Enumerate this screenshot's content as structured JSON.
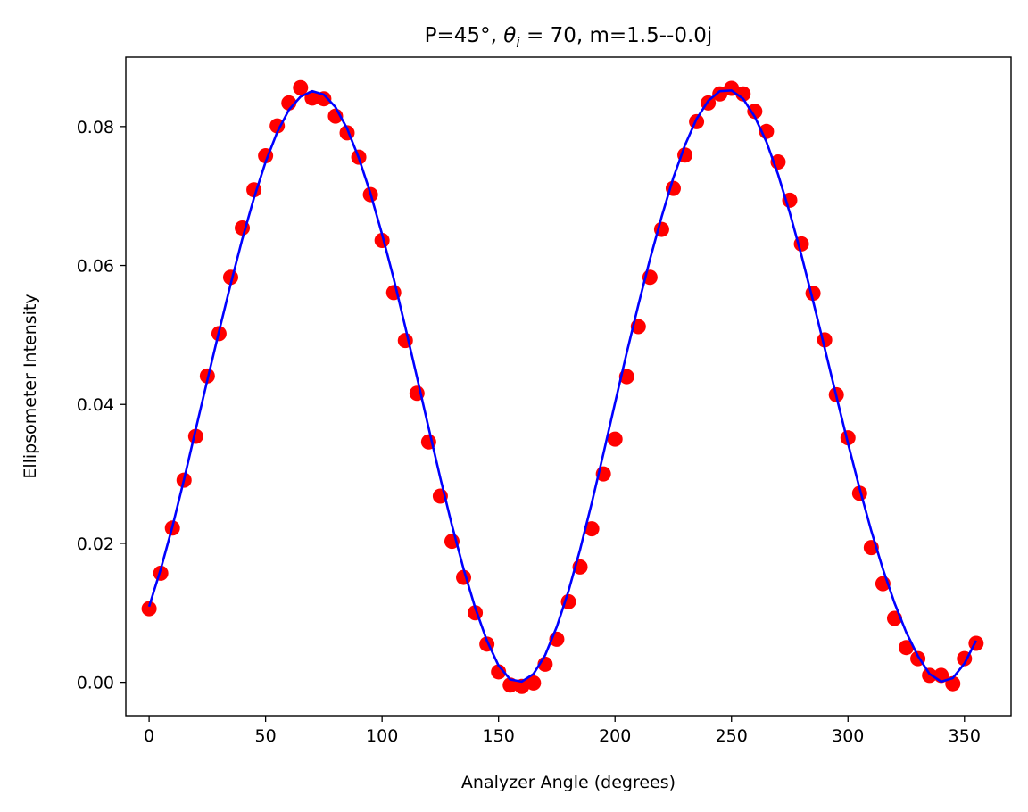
{
  "chart_data": {
    "type": "scatter",
    "title_prefix": "P=45°, ",
    "title_theta": "θ",
    "title_sub": "i",
    "title_suffix": " = 70, m=1.5--0.0j",
    "xlabel": "Analyzer Angle (degrees)",
    "ylabel": "Ellipsometer Intensity",
    "xlim": [
      -10,
      370
    ],
    "ylim": [
      -0.0048,
      0.09
    ],
    "xticks": [
      0,
      50,
      100,
      150,
      200,
      250,
      300,
      350
    ],
    "xtick_labels": [
      "0",
      "50",
      "100",
      "150",
      "200",
      "250",
      "300",
      "350"
    ],
    "yticks": [
      0.0,
      0.02,
      0.04,
      0.06,
      0.08
    ],
    "ytick_labels": [
      "0.00",
      "0.02",
      "0.04",
      "0.06",
      "0.08"
    ],
    "grid": false,
    "legend": "none",
    "series": [
      {
        "kind": "scatter",
        "color": "#ff0000",
        "x": [
          0,
          5,
          10,
          15,
          20,
          25,
          30,
          35,
          40,
          45,
          50,
          55,
          60,
          65,
          70,
          75,
          80,
          85,
          90,
          95,
          100,
          105,
          110,
          115,
          120,
          125,
          130,
          135,
          140,
          145,
          150,
          155,
          160,
          165,
          170,
          175,
          180,
          185,
          190,
          195,
          200,
          205,
          210,
          215,
          220,
          225,
          230,
          235,
          240,
          245,
          250,
          255,
          260,
          265,
          270,
          275,
          280,
          285,
          290,
          295,
          300,
          305,
          310,
          315,
          320,
          325,
          330,
          335,
          340,
          345,
          350,
          355
        ],
        "y": [
          0.0106,
          0.0157,
          0.0222,
          0.0291,
          0.0354,
          0.0441,
          0.0502,
          0.0583,
          0.0654,
          0.0709,
          0.0758,
          0.0801,
          0.0834,
          0.0856,
          0.0841,
          0.084,
          0.0815,
          0.0791,
          0.0756,
          0.0702,
          0.0636,
          0.0561,
          0.0492,
          0.0416,
          0.0346,
          0.0268,
          0.0203,
          0.0151,
          0.01,
          0.0055,
          0.0015,
          -0.0004,
          -0.0006,
          -0.0001,
          0.0026,
          0.0062,
          0.0116,
          0.0166,
          0.0221,
          0.03,
          0.035,
          0.044,
          0.0512,
          0.0583,
          0.0652,
          0.0711,
          0.0759,
          0.0807,
          0.0834,
          0.0847,
          0.0855,
          0.0847,
          0.0822,
          0.0793,
          0.0749,
          0.0694,
          0.0631,
          0.056,
          0.0493,
          0.0414,
          0.0352,
          0.0272,
          0.0194,
          0.0142,
          0.0092,
          0.005,
          0.0034,
          0.001,
          0.001,
          -0.0002,
          0.0034,
          0.0056
        ]
      },
      {
        "kind": "line",
        "color": "#0000ff",
        "x": [
          0,
          5,
          10,
          15,
          20,
          25,
          30,
          35,
          40,
          45,
          50,
          55,
          60,
          65,
          70,
          75,
          80,
          85,
          90,
          95,
          100,
          105,
          110,
          115,
          120,
          125,
          130,
          135,
          140,
          145,
          150,
          155,
          160,
          165,
          170,
          175,
          180,
          185,
          190,
          195,
          200,
          205,
          210,
          215,
          220,
          225,
          230,
          235,
          240,
          245,
          250,
          255,
          260,
          265,
          270,
          275,
          280,
          285,
          290,
          295,
          300,
          305,
          310,
          315,
          320,
          325,
          330,
          335,
          340,
          345,
          350,
          355
        ],
        "y": [
          0.0109,
          0.0163,
          0.0224,
          0.0292,
          0.0364,
          0.0435,
          0.0505,
          0.0573,
          0.0638,
          0.0697,
          0.0749,
          0.0792,
          0.0824,
          0.0843,
          0.0851,
          0.0846,
          0.0828,
          0.0797,
          0.0755,
          0.0704,
          0.0645,
          0.0581,
          0.0511,
          0.0439,
          0.0366,
          0.0294,
          0.0226,
          0.0163,
          0.0107,
          0.006,
          0.0024,
          0.0004,
          0.0001,
          0.0012,
          0.0039,
          0.008,
          0.0131,
          0.0191,
          0.0258,
          0.0329,
          0.0402,
          0.0474,
          0.0543,
          0.0609,
          0.067,
          0.0726,
          0.0773,
          0.0811,
          0.0837,
          0.0851,
          0.0852,
          0.084,
          0.0814,
          0.0778,
          0.0731,
          0.0676,
          0.0615,
          0.0549,
          0.0481,
          0.0412,
          0.0344,
          0.0279,
          0.0218,
          0.0163,
          0.0114,
          0.0072,
          0.0038,
          0.0012,
          0.0001,
          0.0006,
          0.0027,
          0.006
        ]
      }
    ]
  }
}
